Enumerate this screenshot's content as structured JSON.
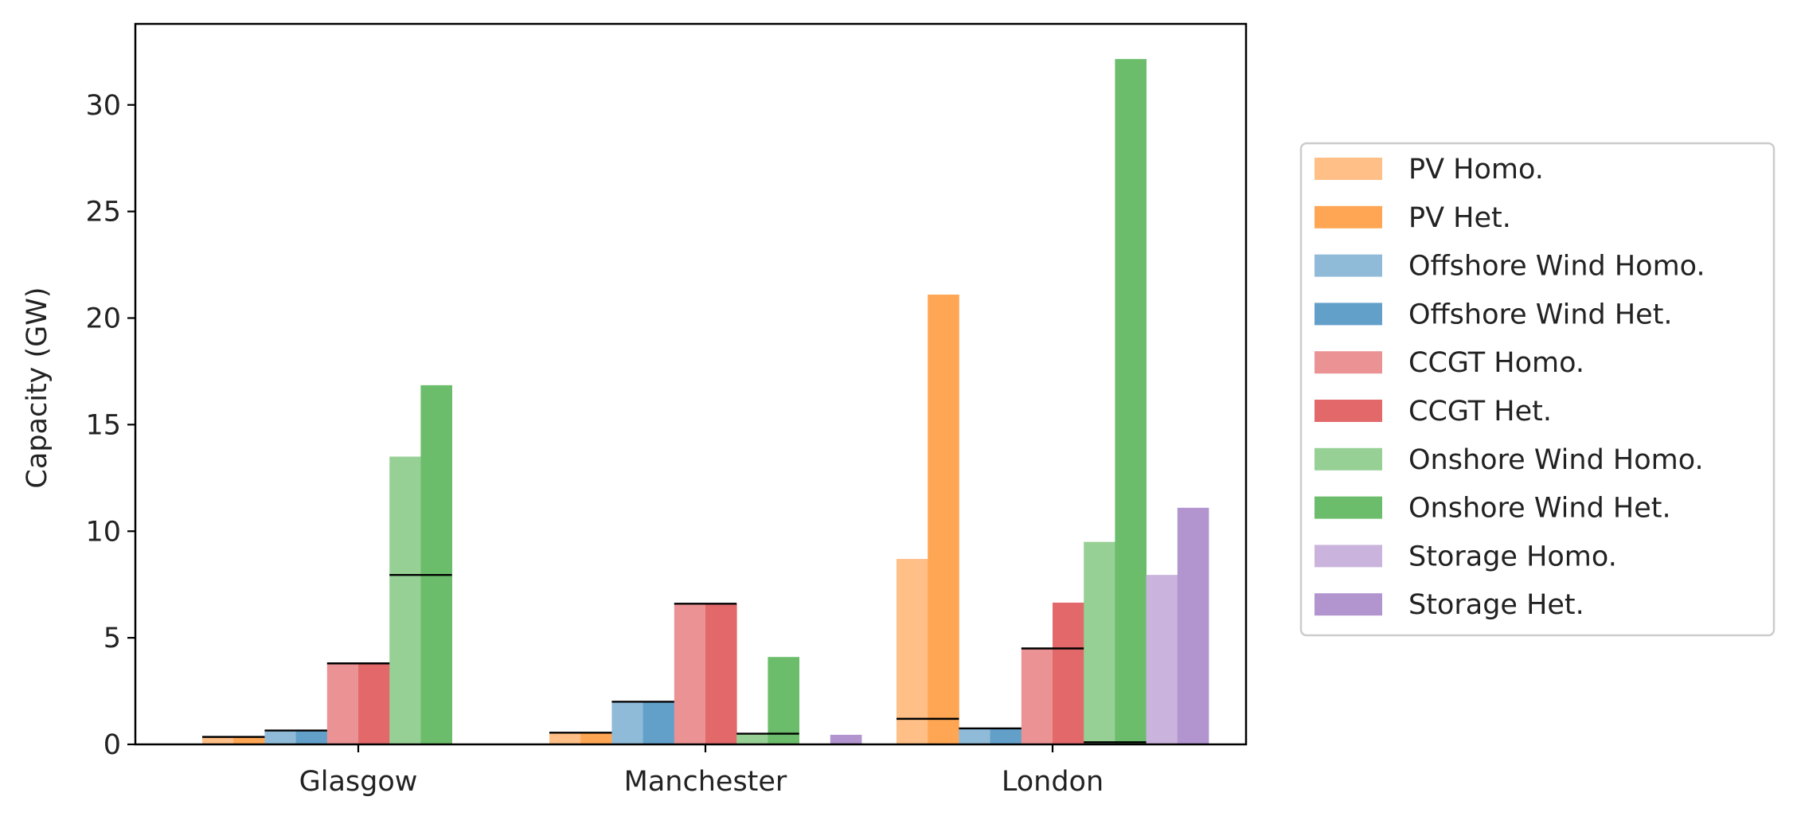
{
  "chart_data": {
    "type": "bar",
    "title": "",
    "xlabel": "",
    "ylabel": "Capacity (GW)",
    "ylim": [
      0,
      33.8
    ],
    "yticks": [
      0,
      5,
      10,
      15,
      20,
      25,
      30
    ],
    "categories": [
      "Glasgow",
      "Manchester",
      "London"
    ],
    "grid": false,
    "legend_position": "right",
    "series": [
      {
        "name": "PV Homo.",
        "color": "#ffbf86",
        "values": [
          0.35,
          0.55,
          8.7
        ],
        "marker": [
          0.35,
          0.55,
          1.2
        ]
      },
      {
        "name": "PV Het.",
        "color": "#ffa654",
        "values": [
          0.35,
          0.55,
          21.1
        ],
        "marker": [
          null,
          null,
          null
        ]
      },
      {
        "name": "Offshore Wind Homo.",
        "color": "#8fbbd9",
        "values": [
          0.65,
          2.0,
          0.75
        ],
        "marker": [
          0.65,
          2.0,
          0.75
        ]
      },
      {
        "name": "Offshore Wind Het.",
        "color": "#62a0ca",
        "values": [
          0.65,
          2.0,
          0.75
        ],
        "marker": [
          null,
          null,
          null
        ]
      },
      {
        "name": "CCGT Homo.",
        "color": "#eb9394",
        "values": [
          3.8,
          6.6,
          4.5
        ],
        "marker": [
          3.8,
          6.6,
          4.5
        ]
      },
      {
        "name": "CCGT Het.",
        "color": "#e2686a",
        "values": [
          3.8,
          6.6,
          6.65
        ],
        "marker": [
          null,
          null,
          null
        ]
      },
      {
        "name": "Onshore Wind Homo.",
        "color": "#97d095",
        "values": [
          13.5,
          0.5,
          9.5
        ],
        "marker": [
          7.95,
          0.5,
          0.1
        ]
      },
      {
        "name": "Onshore Wind Het.",
        "color": "#6bbd6b",
        "values": [
          16.85,
          4.1,
          32.15
        ],
        "marker": [
          null,
          null,
          null
        ]
      },
      {
        "name": "Storage Homo.",
        "color": "#cab3dd",
        "values": [
          0,
          0,
          7.95
        ],
        "marker": [
          null,
          null,
          null
        ]
      },
      {
        "name": "Storage Het.",
        "color": "#b294cf",
        "values": [
          0,
          0.45,
          11.1
        ],
        "marker": [
          null,
          null,
          null
        ]
      }
    ]
  }
}
